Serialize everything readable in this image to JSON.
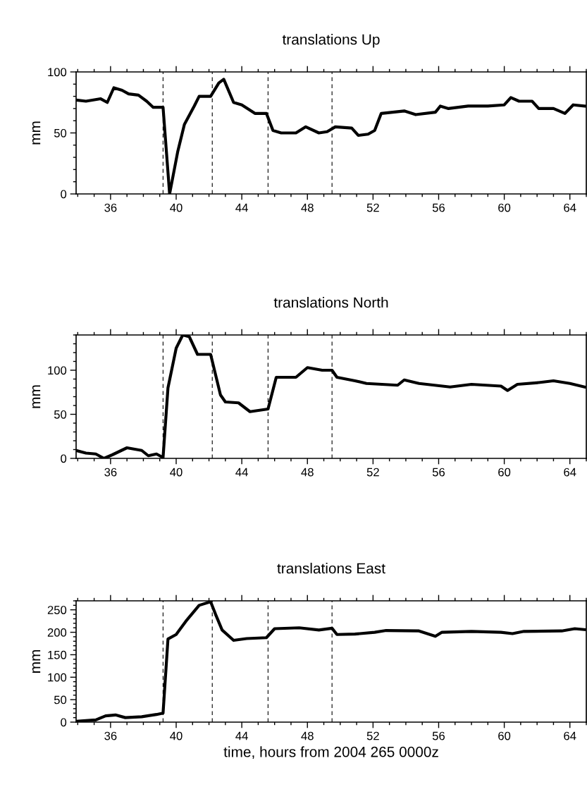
{
  "chart_data": [
    {
      "type": "line",
      "title": "translations Up",
      "ylabel": "mm",
      "xlim": [
        33.9,
        65
      ],
      "xticks": [
        36,
        40,
        44,
        48,
        52,
        56,
        60,
        64
      ],
      "ylim": [
        0,
        100
      ],
      "yticks": [
        0,
        50,
        100
      ],
      "series": [
        {
          "color": "#000000",
          "x": [
            33.9,
            34.5,
            35.4,
            35.8,
            36.2,
            36.7,
            37.1,
            37.7,
            38.2,
            38.6,
            39.2,
            39.6,
            40.1,
            40.5,
            41.1,
            41.4,
            42.1,
            42.6,
            42.9,
            43.5,
            44.0,
            44.8,
            45.5,
            45.9,
            46.4,
            47.3,
            47.9,
            48.7,
            49.2,
            49.7,
            50.7,
            51.1,
            51.7,
            52.1,
            52.5,
            53.9,
            54.6,
            55.8,
            56.1,
            56.6,
            57.8,
            59.0,
            60.0,
            60.4,
            60.9,
            61.7,
            62.1,
            63.0,
            63.7,
            64.2,
            64.9
          ],
          "values": [
            77,
            76,
            78,
            75,
            87,
            85,
            82,
            81,
            76,
            71,
            71,
            0,
            35,
            57,
            72,
            80,
            80,
            91,
            94,
            75,
            73,
            66,
            66,
            52,
            50,
            50,
            55,
            50,
            51,
            55,
            54,
            48,
            49,
            52,
            66,
            68,
            65,
            67,
            72,
            70,
            72,
            72,
            73,
            79,
            76,
            76,
            70,
            70,
            66,
            73,
            72
          ]
        }
      ],
      "ref_lines": [
        {
          "axis": "x",
          "value": 39.2,
          "line_style": "dashed",
          "color": "#000000"
        },
        {
          "axis": "x",
          "value": 42.2,
          "line_style": "dashed",
          "color": "#000000"
        },
        {
          "axis": "x",
          "value": 45.6,
          "line_style": "dashed",
          "color": "#000000"
        },
        {
          "axis": "x",
          "value": 49.5,
          "line_style": "dashed",
          "color": "#000000"
        }
      ]
    },
    {
      "type": "line",
      "title": "translations North",
      "ylabel": "mm",
      "xlim": [
        33.9,
        65
      ],
      "xticks": [
        36,
        40,
        44,
        48,
        52,
        56,
        60,
        64
      ],
      "ylim": [
        0,
        140
      ],
      "yticks": [
        0,
        50,
        100
      ],
      "series": [
        {
          "color": "#000000",
          "x": [
            33.9,
            34.5,
            35.1,
            35.6,
            36.1,
            37.0,
            37.9,
            38.3,
            38.8,
            39.2,
            39.5,
            40.0,
            40.4,
            40.8,
            41.3,
            42.1,
            42.7,
            43.0,
            43.8,
            44.5,
            45.6,
            46.1,
            47.3,
            48.0,
            48.9,
            49.5,
            49.8,
            50.9,
            51.6,
            53.5,
            53.9,
            54.8,
            56.7,
            58.0,
            59.8,
            60.2,
            60.8,
            62.1,
            63.0,
            64.0,
            64.9
          ],
          "values": [
            9,
            6,
            5,
            0,
            4,
            12,
            9,
            3,
            5,
            1,
            80,
            125,
            140,
            138,
            118,
            118,
            72,
            64,
            63,
            53,
            56,
            92,
            92,
            103,
            100,
            100,
            92,
            88,
            85,
            83,
            89,
            85,
            81,
            84,
            82,
            77,
            84,
            86,
            88,
            85,
            81
          ]
        }
      ],
      "ref_lines": [
        {
          "axis": "x",
          "value": 39.2,
          "line_style": "dashed",
          "color": "#000000"
        },
        {
          "axis": "x",
          "value": 42.2,
          "line_style": "dashed",
          "color": "#000000"
        },
        {
          "axis": "x",
          "value": 45.6,
          "line_style": "dashed",
          "color": "#000000"
        },
        {
          "axis": "x",
          "value": 49.5,
          "line_style": "dashed",
          "color": "#000000"
        }
      ]
    },
    {
      "type": "line",
      "title": "translations East",
      "ylabel": "mm",
      "xlabel": "time, hours from 2004 265 0000z",
      "xlim": [
        33.9,
        65
      ],
      "xticks": [
        36,
        40,
        44,
        48,
        52,
        56,
        60,
        64
      ],
      "ylim": [
        0,
        270
      ],
      "yticks": [
        0,
        50,
        100,
        150,
        200,
        250
      ],
      "series": [
        {
          "color": "#000000",
          "x": [
            33.9,
            35.1,
            35.7,
            36.3,
            36.9,
            37.9,
            38.8,
            39.2,
            39.5,
            40.0,
            40.6,
            41.4,
            42.1,
            42.4,
            42.8,
            43.5,
            44.3,
            45.5,
            46.0,
            47.5,
            48.7,
            49.5,
            49.8,
            50.9,
            52.1,
            52.8,
            54.8,
            55.8,
            56.2,
            58.0,
            59.8,
            60.5,
            61.2,
            63.5,
            64.3,
            64.9
          ],
          "values": [
            2,
            5,
            14,
            16,
            10,
            12,
            17,
            20,
            185,
            195,
            225,
            260,
            268,
            240,
            205,
            182,
            186,
            188,
            208,
            210,
            205,
            209,
            195,
            196,
            200,
            204,
            203,
            191,
            200,
            202,
            200,
            197,
            202,
            203,
            208,
            206
          ]
        }
      ],
      "ref_lines": [
        {
          "axis": "x",
          "value": 39.2,
          "line_style": "dashed",
          "color": "#000000"
        },
        {
          "axis": "x",
          "value": 42.2,
          "line_style": "dashed",
          "color": "#000000"
        },
        {
          "axis": "x",
          "value": 45.6,
          "line_style": "dashed",
          "color": "#000000"
        },
        {
          "axis": "x",
          "value": 49.5,
          "line_style": "dashed",
          "color": "#000000"
        }
      ]
    }
  ]
}
